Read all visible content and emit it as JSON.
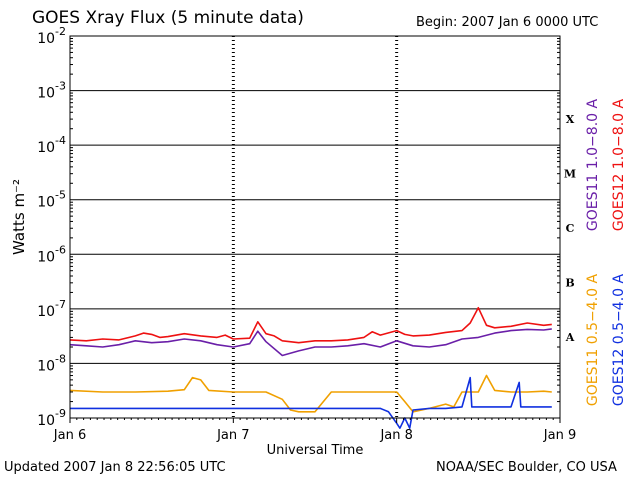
{
  "header": {
    "title": "GOES Xray Flux (5 minute data)",
    "begin": "Begin:  2007 Jan 6 0000 UTC"
  },
  "footer": {
    "updated": "Updated 2007 Jan  8 22:56:05 UTC",
    "source": "NOAA/SEC Boulder, CO USA"
  },
  "colors": {
    "goes11_long": "#6a1fa8",
    "goes12_long": "#ee1111",
    "goes11_short": "#f0a000",
    "goes12_short": "#1030e0"
  },
  "chart_data": {
    "type": "line",
    "title": "GOES Xray Flux (5 minute data)",
    "xlabel": "Universal Time",
    "ylabel": "Watts m⁻²",
    "y_scale": "log",
    "ylim": [
      1e-09,
      0.01
    ],
    "xlim": [
      "Jan 6",
      "Jan 9"
    ],
    "x_unit": "days",
    "x_ticks": [
      "Jan 6",
      "Jan 7",
      "Jan 8",
      "Jan 9"
    ],
    "y_ticks": [
      {
        "base": "10",
        "exp": "-2",
        "value": 0.01
      },
      {
        "base": "10",
        "exp": "-3",
        "value": 0.001
      },
      {
        "base": "10",
        "exp": "-4",
        "value": 0.0001
      },
      {
        "base": "10",
        "exp": "-5",
        "value": 1e-05
      },
      {
        "base": "10",
        "exp": "-6",
        "value": 1e-06
      },
      {
        "base": "10",
        "exp": "-7",
        "value": 1e-07
      },
      {
        "base": "10",
        "exp": "-8",
        "value": 1e-08
      },
      {
        "base": "10",
        "exp": "-9",
        "value": 1e-09
      }
    ],
    "flare_classes": [
      {
        "label": "X",
        "low": 0.0001,
        "high": 0.001
      },
      {
        "label": "M",
        "low": 1e-05,
        "high": 0.0001
      },
      {
        "label": "C",
        "low": 1e-06,
        "high": 1e-05
      },
      {
        "label": "B",
        "low": 1e-07,
        "high": 1e-06
      },
      {
        "label": "A",
        "low": 1e-08,
        "high": 1e-07
      }
    ],
    "legend_right": [
      {
        "text": "GOES11 1.0−8.0 A",
        "color": "#6a1fa8"
      },
      {
        "text": "GOES12 1.0−8.0 A",
        "color": "#ee1111"
      }
    ],
    "legend_left": [
      {
        "text": "GOES11 0.5−4.0 A",
        "color": "#f0a000"
      },
      {
        "text": "GOES12 0.5−4.0 A",
        "color": "#1030e0"
      }
    ],
    "series": [
      {
        "name": "GOES12 1.0−8.0 A",
        "color": "#ee1111",
        "x": [
          0,
          0.1,
          0.2,
          0.3,
          0.4,
          0.45,
          0.5,
          0.55,
          0.6,
          0.7,
          0.8,
          0.9,
          0.95,
          1.0,
          1.1,
          1.15,
          1.2,
          1.25,
          1.3,
          1.4,
          1.5,
          1.6,
          1.7,
          1.8,
          1.85,
          1.9,
          2.0,
          2.05,
          2.1,
          2.2,
          2.3,
          2.4,
          2.45,
          2.5,
          2.55,
          2.6,
          2.7,
          2.8,
          2.9,
          2.95
        ],
        "y": [
          2.7e-08,
          2.6e-08,
          2.8e-08,
          2.7e-08,
          3.2e-08,
          3.6e-08,
          3.4e-08,
          3e-08,
          3.1e-08,
          3.5e-08,
          3.2e-08,
          3e-08,
          3.3e-08,
          2.8e-08,
          2.9e-08,
          5.8e-08,
          3.5e-08,
          3.2e-08,
          2.6e-08,
          2.4e-08,
          2.6e-08,
          2.6e-08,
          2.7e-08,
          3e-08,
          3.8e-08,
          3.3e-08,
          4e-08,
          3.4e-08,
          3.2e-08,
          3.3e-08,
          3.7e-08,
          4e-08,
          5.5e-08,
          1.05e-07,
          5e-08,
          4.5e-08,
          4.8e-08,
          5.5e-08,
          5e-08,
          5.2e-08
        ]
      },
      {
        "name": "GOES11 1.0−8.0 A",
        "color": "#6a1fa8",
        "x": [
          0,
          0.1,
          0.2,
          0.3,
          0.4,
          0.5,
          0.6,
          0.7,
          0.8,
          0.9,
          1.0,
          1.1,
          1.15,
          1.2,
          1.3,
          1.4,
          1.5,
          1.6,
          1.7,
          1.8,
          1.9,
          2.0,
          2.1,
          2.2,
          2.3,
          2.4,
          2.5,
          2.6,
          2.7,
          2.8,
          2.9,
          2.95
        ],
        "y": [
          2.2e-08,
          2.1e-08,
          2e-08,
          2.2e-08,
          2.6e-08,
          2.4e-08,
          2.5e-08,
          2.8e-08,
          2.6e-08,
          2.2e-08,
          2e-08,
          2.3e-08,
          3.9e-08,
          2.5e-08,
          1.4e-08,
          1.7e-08,
          2e-08,
          2e-08,
          2.1e-08,
          2.3e-08,
          2e-08,
          2.6e-08,
          2.1e-08,
          2e-08,
          2.2e-08,
          2.8e-08,
          3e-08,
          3.6e-08,
          4e-08,
          4.2e-08,
          4.1e-08,
          4.3e-08
        ]
      },
      {
        "name": "GOES11 0.5−4.0 A",
        "color": "#f0a000",
        "x": [
          0,
          0.2,
          0.4,
          0.6,
          0.7,
          0.75,
          0.8,
          0.85,
          1.0,
          1.2,
          1.3,
          1.35,
          1.4,
          1.5,
          1.6,
          1.8,
          2.0,
          2.05,
          2.1,
          2.2,
          2.3,
          2.35,
          2.4,
          2.5,
          2.55,
          2.6,
          2.7,
          2.8,
          2.9,
          2.95
        ],
        "y": [
          3.2e-09,
          3e-09,
          3e-09,
          3.1e-09,
          3.3e-09,
          5.5e-09,
          5e-09,
          3.2e-09,
          3e-09,
          3e-09,
          2.2e-09,
          1.4e-09,
          1.3e-09,
          1.3e-09,
          3e-09,
          3e-09,
          3e-09,
          2e-09,
          1.3e-09,
          1.5e-09,
          1.8e-09,
          1.6e-09,
          3e-09,
          3e-09,
          6e-09,
          3.2e-09,
          3e-09,
          3e-09,
          3.1e-09,
          3e-09
        ]
      },
      {
        "name": "GOES12 0.5−4.0 A",
        "color": "#1030e0",
        "x": [
          0,
          0.2,
          0.4,
          0.6,
          0.8,
          1.0,
          1.2,
          1.4,
          1.6,
          1.8,
          1.9,
          1.95,
          2.0,
          2.02,
          2.05,
          2.08,
          2.1,
          2.2,
          2.3,
          2.4,
          2.45,
          2.46,
          2.5,
          2.7,
          2.75,
          2.76,
          2.8,
          2.9,
          2.95
        ],
        "y": [
          1.5e-09,
          1.5e-09,
          1.5e-09,
          1.5e-09,
          1.5e-09,
          1.5e-09,
          1.5e-09,
          1.5e-09,
          1.5e-09,
          1.5e-09,
          1.5e-09,
          1.3e-09,
          8e-10,
          6.5e-10,
          1e-09,
          6.5e-10,
          1.4e-09,
          1.5e-09,
          1.5e-09,
          1.6e-09,
          5.5e-09,
          1.6e-09,
          1.6e-09,
          1.6e-09,
          4.5e-09,
          1.6e-09,
          1.6e-09,
          1.6e-09,
          1.6e-09
        ]
      }
    ]
  }
}
